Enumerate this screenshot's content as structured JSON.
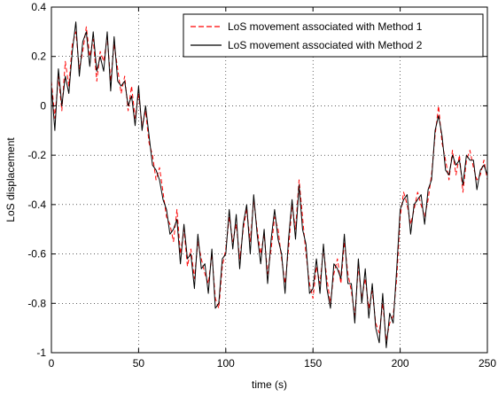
{
  "chart_data": {
    "type": "line",
    "title": "",
    "xlabel": "time (s)",
    "ylabel": "LoS displacement",
    "xlim": [
      0,
      250
    ],
    "ylim": [
      -1,
      0.4
    ],
    "xticks": [
      0,
      50,
      100,
      150,
      200,
      250
    ],
    "yticks": [
      -1,
      -0.8,
      -0.6,
      -0.4,
      -0.2,
      0,
      0.2,
      0.4
    ],
    "xtick_labels": [
      "0",
      "50",
      "100",
      "150",
      "200",
      "250"
    ],
    "ytick_labels": [
      "-1",
      "-0.8",
      "-0.6",
      "-0.4",
      "-0.2",
      "0",
      "0.2",
      "0.4"
    ],
    "grid": true,
    "grid_style": "dotted",
    "legend_position": "top-right",
    "series": [
      {
        "name": "LoS movement associated with Method 1",
        "color": "#ff0000",
        "line_style": "dashed",
        "x": [
          0,
          2,
          4,
          6,
          8,
          10,
          12,
          14,
          16,
          18,
          20,
          22,
          24,
          26,
          28,
          30,
          32,
          34,
          36,
          38,
          40,
          42,
          44,
          46,
          48,
          50,
          52,
          54,
          56,
          58,
          60,
          62,
          64,
          66,
          68,
          70,
          72,
          74,
          76,
          78,
          80,
          82,
          84,
          86,
          88,
          90,
          92,
          94,
          96,
          98,
          100,
          102,
          104,
          106,
          108,
          110,
          112,
          114,
          116,
          118,
          120,
          122,
          124,
          126,
          128,
          130,
          132,
          134,
          136,
          138,
          140,
          142,
          144,
          146,
          148,
          150,
          152,
          154,
          156,
          158,
          160,
          162,
          164,
          166,
          168,
          170,
          172,
          174,
          176,
          178,
          180,
          182,
          184,
          186,
          188,
          190,
          192,
          194,
          196,
          198,
          200,
          202,
          204,
          206,
          208,
          210,
          212,
          214,
          216,
          218,
          220,
          222,
          224,
          226,
          228,
          230,
          232,
          234,
          236,
          238,
          240,
          242,
          244,
          246,
          248,
          250
        ],
        "y": [
          0.1,
          -0.05,
          0.12,
          -0.02,
          0.18,
          0.08,
          0.25,
          0.3,
          0.15,
          0.22,
          0.32,
          0.2,
          0.27,
          0.1,
          0.22,
          0.18,
          0.28,
          0.1,
          0.25,
          0.15,
          0.05,
          0.12,
          -0.02,
          0.08,
          -0.05,
          0.05,
          -0.08,
          -0.02,
          -0.15,
          -0.2,
          -0.3,
          -0.25,
          -0.35,
          -0.45,
          -0.48,
          -0.55,
          -0.42,
          -0.6,
          -0.5,
          -0.65,
          -0.58,
          -0.7,
          -0.55,
          -0.62,
          -0.68,
          -0.72,
          -0.6,
          -0.78,
          -0.82,
          -0.65,
          -0.58,
          -0.45,
          -0.55,
          -0.48,
          -0.62,
          -0.5,
          -0.42,
          -0.55,
          -0.38,
          -0.5,
          -0.6,
          -0.52,
          -0.68,
          -0.58,
          -0.45,
          -0.5,
          -0.62,
          -0.72,
          -0.58,
          -0.4,
          -0.5,
          -0.3,
          -0.45,
          -0.6,
          -0.72,
          -0.78,
          -0.65,
          -0.72,
          -0.58,
          -0.7,
          -0.8,
          -0.68,
          -0.62,
          -0.72,
          -0.55,
          -0.68,
          -0.75,
          -0.85,
          -0.65,
          -0.78,
          -0.7,
          -0.82,
          -0.75,
          -0.88,
          -0.92,
          -0.8,
          -0.95,
          -0.88,
          -0.85,
          -0.7,
          -0.45,
          -0.35,
          -0.4,
          -0.48,
          -0.42,
          -0.35,
          -0.4,
          -0.45,
          -0.38,
          -0.28,
          -0.12,
          0.0,
          -0.15,
          -0.22,
          -0.3,
          -0.18,
          -0.28,
          -0.2,
          -0.35,
          -0.22,
          -0.18,
          -0.25,
          -0.3,
          -0.28,
          -0.22,
          -0.3
        ]
      },
      {
        "name": "LoS movement associated with Method 2",
        "color": "#000000",
        "line_style": "solid",
        "x": [
          0,
          2,
          4,
          6,
          8,
          10,
          12,
          14,
          16,
          18,
          20,
          22,
          24,
          26,
          28,
          30,
          32,
          34,
          36,
          38,
          40,
          42,
          44,
          46,
          48,
          50,
          52,
          54,
          56,
          58,
          60,
          62,
          64,
          66,
          68,
          70,
          72,
          74,
          76,
          78,
          80,
          82,
          84,
          86,
          88,
          90,
          92,
          94,
          96,
          98,
          100,
          102,
          104,
          106,
          108,
          110,
          112,
          114,
          116,
          118,
          120,
          122,
          124,
          126,
          128,
          130,
          132,
          134,
          136,
          138,
          140,
          142,
          144,
          146,
          148,
          150,
          152,
          154,
          156,
          158,
          160,
          162,
          164,
          166,
          168,
          170,
          172,
          174,
          176,
          178,
          180,
          182,
          184,
          186,
          188,
          190,
          192,
          194,
          196,
          198,
          200,
          202,
          204,
          206,
          208,
          210,
          212,
          214,
          216,
          218,
          220,
          222,
          224,
          226,
          228,
          230,
          232,
          234,
          236,
          238,
          240,
          242,
          244,
          246,
          248,
          250
        ],
        "y": [
          0.08,
          -0.1,
          0.15,
          0.0,
          0.12,
          0.05,
          0.22,
          0.34,
          0.12,
          0.26,
          0.3,
          0.16,
          0.3,
          0.14,
          0.2,
          0.14,
          0.3,
          0.06,
          0.28,
          0.1,
          0.08,
          0.1,
          0.0,
          0.04,
          -0.08,
          0.08,
          -0.1,
          0.0,
          -0.12,
          -0.24,
          -0.26,
          -0.3,
          -0.38,
          -0.42,
          -0.52,
          -0.5,
          -0.46,
          -0.64,
          -0.48,
          -0.62,
          -0.6,
          -0.74,
          -0.52,
          -0.66,
          -0.64,
          -0.76,
          -0.58,
          -0.82,
          -0.8,
          -0.62,
          -0.6,
          -0.42,
          -0.58,
          -0.44,
          -0.66,
          -0.48,
          -0.4,
          -0.6,
          -0.36,
          -0.52,
          -0.64,
          -0.5,
          -0.72,
          -0.54,
          -0.42,
          -0.54,
          -0.6,
          -0.76,
          -0.54,
          -0.38,
          -0.54,
          -0.32,
          -0.5,
          -0.56,
          -0.76,
          -0.74,
          -0.62,
          -0.76,
          -0.56,
          -0.74,
          -0.82,
          -0.64,
          -0.66,
          -0.7,
          -0.52,
          -0.72,
          -0.72,
          -0.88,
          -0.62,
          -0.8,
          -0.66,
          -0.86,
          -0.72,
          -0.9,
          -0.96,
          -0.76,
          -0.98,
          -0.84,
          -0.88,
          -0.66,
          -0.42,
          -0.38,
          -0.36,
          -0.52,
          -0.4,
          -0.38,
          -0.36,
          -0.48,
          -0.34,
          -0.3,
          -0.1,
          -0.04,
          -0.12,
          -0.26,
          -0.28,
          -0.2,
          -0.24,
          -0.22,
          -0.32,
          -0.2,
          -0.22,
          -0.22,
          -0.34,
          -0.26,
          -0.24,
          -0.28
        ]
      }
    ]
  }
}
